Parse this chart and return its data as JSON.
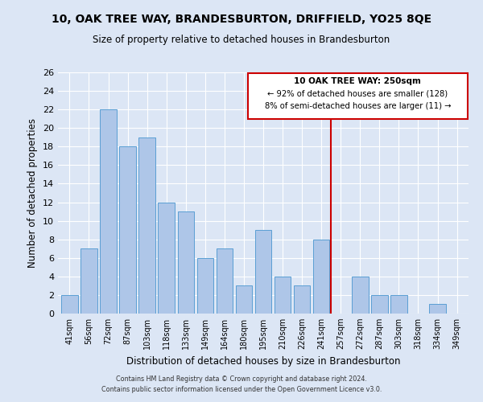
{
  "title": "10, OAK TREE WAY, BRANDESBURTON, DRIFFIELD, YO25 8QE",
  "subtitle": "Size of property relative to detached houses in Brandesburton",
  "xlabel": "Distribution of detached houses by size in Brandesburton",
  "ylabel": "Number of detached properties",
  "bar_labels": [
    "41sqm",
    "56sqm",
    "72sqm",
    "87sqm",
    "103sqm",
    "118sqm",
    "133sqm",
    "149sqm",
    "164sqm",
    "180sqm",
    "195sqm",
    "210sqm",
    "226sqm",
    "241sqm",
    "257sqm",
    "272sqm",
    "287sqm",
    "303sqm",
    "318sqm",
    "334sqm",
    "349sqm"
  ],
  "bar_values": [
    2,
    7,
    22,
    18,
    19,
    12,
    11,
    6,
    7,
    3,
    9,
    4,
    3,
    8,
    0,
    4,
    2,
    2,
    0,
    1,
    0
  ],
  "bar_color": "#aec6e8",
  "bar_edge_color": "#5a9fd4",
  "ylim": [
    0,
    26
  ],
  "yticks": [
    0,
    2,
    4,
    6,
    8,
    10,
    12,
    14,
    16,
    18,
    20,
    22,
    24,
    26
  ],
  "vline_color": "#cc0000",
  "annotation_title": "10 OAK TREE WAY: 250sqm",
  "annotation_line1": "← 92% of detached houses are smaller (128)",
  "annotation_line2": "8% of semi-detached houses are larger (11) →",
  "annotation_box_color": "#ffffff",
  "annotation_box_edge": "#cc0000",
  "footer1": "Contains HM Land Registry data © Crown copyright and database right 2024.",
  "footer2": "Contains public sector information licensed under the Open Government Licence v3.0.",
  "bg_color": "#dce6f5",
  "plot_bg": "#dce6f5",
  "grid_color": "#ffffff"
}
